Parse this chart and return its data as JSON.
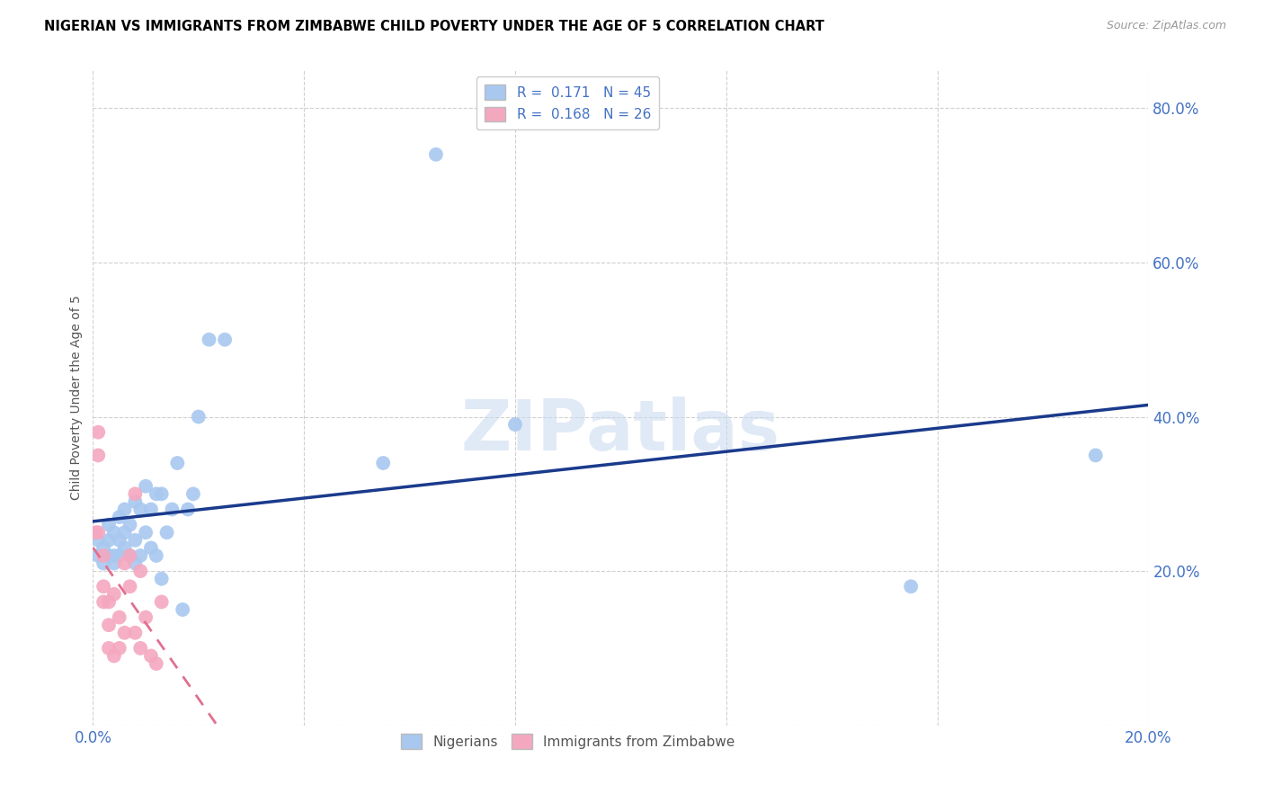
{
  "title": "NIGERIAN VS IMMIGRANTS FROM ZIMBABWE CHILD POVERTY UNDER THE AGE OF 5 CORRELATION CHART",
  "source": "Source: ZipAtlas.com",
  "ylabel": "Child Poverty Under the Age of 5",
  "xlim": [
    0.0,
    0.2
  ],
  "ylim": [
    0.0,
    0.85
  ],
  "ytick_labels": [
    "",
    "20.0%",
    "40.0%",
    "60.0%",
    "80.0%"
  ],
  "ytick_values": [
    0.0,
    0.2,
    0.4,
    0.6,
    0.8
  ],
  "xtick_values": [
    0.0,
    0.04,
    0.08,
    0.12,
    0.16,
    0.2
  ],
  "grid_color": "#d0d0d0",
  "watermark": "ZIPatlas",
  "legend_R1": "0.171",
  "legend_N1": "45",
  "legend_R2": "0.168",
  "legend_N2": "26",
  "legend_label1": "Nigerians",
  "legend_label2": "Immigrants from Zimbabwe",
  "color_nigerian": "#a8c8f0",
  "color_zimbabwe": "#f4a8c0",
  "line_color_nigerian": "#1a3a8c",
  "line_color_zimbabwe": "#e07090",
  "nigerian_x": [
    0.001,
    0.001,
    0.002,
    0.002,
    0.003,
    0.003,
    0.003,
    0.004,
    0.004,
    0.004,
    0.005,
    0.005,
    0.005,
    0.006,
    0.006,
    0.006,
    0.007,
    0.007,
    0.008,
    0.008,
    0.008,
    0.009,
    0.009,
    0.01,
    0.01,
    0.011,
    0.011,
    0.012,
    0.012,
    0.013,
    0.013,
    0.014,
    0.015,
    0.016,
    0.017,
    0.018,
    0.019,
    0.02,
    0.022,
    0.025,
    0.055,
    0.065,
    0.08,
    0.155,
    0.19
  ],
  "nigerian_y": [
    0.24,
    0.22,
    0.23,
    0.21,
    0.26,
    0.24,
    0.22,
    0.25,
    0.22,
    0.21,
    0.27,
    0.24,
    0.22,
    0.28,
    0.25,
    0.23,
    0.26,
    0.22,
    0.29,
    0.24,
    0.21,
    0.28,
    0.22,
    0.31,
    0.25,
    0.28,
    0.23,
    0.3,
    0.22,
    0.3,
    0.19,
    0.25,
    0.28,
    0.34,
    0.15,
    0.28,
    0.3,
    0.4,
    0.5,
    0.5,
    0.34,
    0.74,
    0.39,
    0.18,
    0.35
  ],
  "zimbabwe_x": [
    0.0005,
    0.001,
    0.001,
    0.001,
    0.002,
    0.002,
    0.002,
    0.003,
    0.003,
    0.003,
    0.004,
    0.004,
    0.005,
    0.005,
    0.006,
    0.006,
    0.007,
    0.007,
    0.008,
    0.008,
    0.009,
    0.009,
    0.01,
    0.011,
    0.012,
    0.013
  ],
  "zimbabwe_y": [
    0.25,
    0.38,
    0.35,
    0.25,
    0.22,
    0.18,
    0.16,
    0.16,
    0.13,
    0.1,
    0.17,
    0.09,
    0.14,
    0.1,
    0.21,
    0.12,
    0.22,
    0.18,
    0.3,
    0.12,
    0.2,
    0.1,
    0.14,
    0.09,
    0.08,
    0.16
  ]
}
